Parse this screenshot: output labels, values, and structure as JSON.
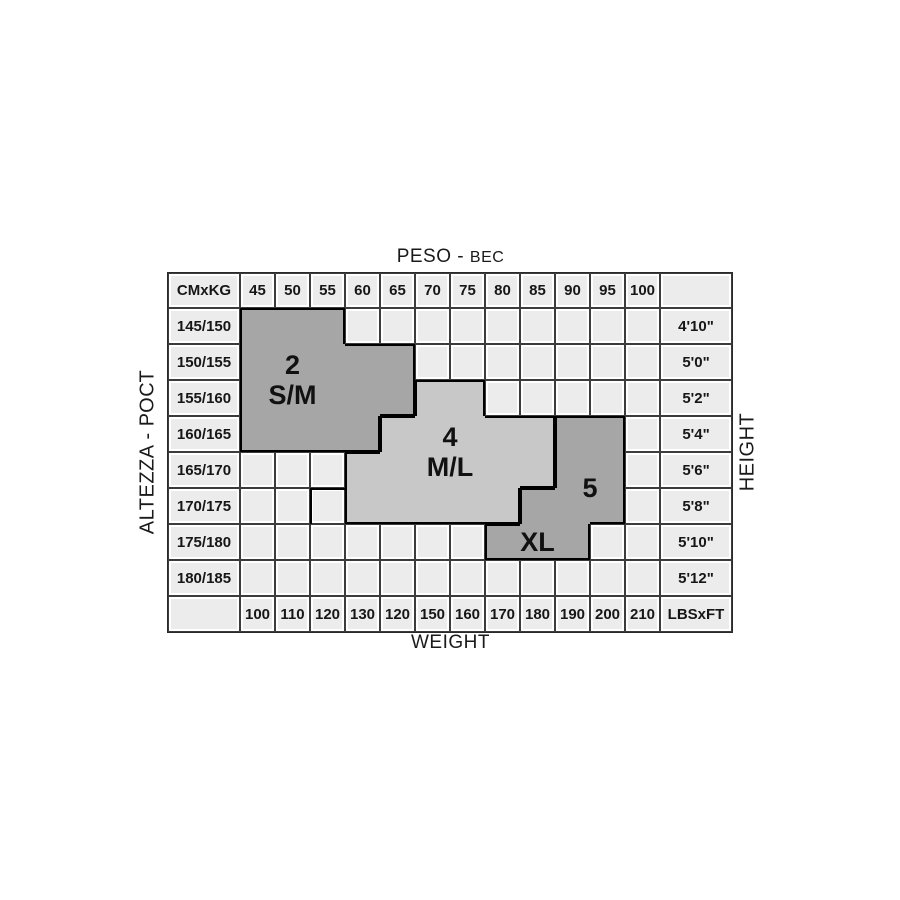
{
  "titles": {
    "top_main": "PESO - ",
    "top_cyr": "ВЕС",
    "bottom": "WEIGHT",
    "left": "ALTEZZA - РОСТ",
    "right": "HEIGHT"
  },
  "table": {
    "corner_label": "CMxKG",
    "unit_label": "LBSxFT",
    "kg_columns": [
      "45",
      "50",
      "55",
      "60",
      "65",
      "70",
      "75",
      "80",
      "85",
      "90",
      "95",
      "100"
    ],
    "rows": [
      {
        "cm": "145/150",
        "ft": "4'10\""
      },
      {
        "cm": "150/155",
        "ft": "5'0\""
      },
      {
        "cm": "155/160",
        "ft": "5'2\""
      },
      {
        "cm": "160/165",
        "ft": "5'4\""
      },
      {
        "cm": "165/170",
        "ft": "5'6\""
      },
      {
        "cm": "170/175",
        "ft": "5'8\""
      },
      {
        "cm": "175/180",
        "ft": "5'10\""
      },
      {
        "cm": "180/185",
        "ft": "5'12\""
      }
    ],
    "lbs_row": [
      "100",
      "110",
      "120",
      "130",
      "120",
      "150",
      "160",
      "170",
      "180",
      "190",
      "200",
      "210"
    ]
  },
  "regions": [
    {
      "id": "size-2-sm",
      "fill": "#a6a6a6",
      "cells": [
        [
          1,
          1
        ],
        [
          1,
          2
        ],
        [
          1,
          3
        ],
        [
          2,
          1
        ],
        [
          2,
          2
        ],
        [
          2,
          3
        ],
        [
          2,
          4
        ],
        [
          2,
          5
        ],
        [
          3,
          1
        ],
        [
          3,
          2
        ],
        [
          3,
          3
        ],
        [
          3,
          4
        ],
        [
          3,
          5
        ],
        [
          4,
          1
        ],
        [
          4,
          2
        ],
        [
          4,
          3
        ],
        [
          4,
          4
        ]
      ],
      "labels": [
        {
          "lines": [
            "2",
            "S/M"
          ],
          "col_start": 1,
          "col_end": 3,
          "row_start": 2,
          "row_end": 3
        }
      ]
    },
    {
      "id": "size-4-ml",
      "fill": "#c8c8c8",
      "cells": [
        [
          3,
          6
        ],
        [
          3,
          7
        ],
        [
          4,
          5
        ],
        [
          4,
          6
        ],
        [
          4,
          7
        ],
        [
          4,
          8
        ],
        [
          4,
          9
        ],
        [
          5,
          4
        ],
        [
          5,
          5
        ],
        [
          5,
          6
        ],
        [
          5,
          7
        ],
        [
          5,
          8
        ],
        [
          5,
          9
        ],
        [
          6,
          4
        ],
        [
          6,
          5
        ],
        [
          6,
          6
        ],
        [
          6,
          7
        ],
        [
          6,
          8
        ]
      ],
      "outline_only": [
        {
          "row": 6,
          "col": 3,
          "sides": [
            "top",
            "left"
          ]
        }
      ],
      "labels": [
        {
          "lines": [
            "4",
            "M/L"
          ],
          "col_start": 6,
          "col_end": 7,
          "row_start": 4,
          "row_end": 5
        }
      ]
    },
    {
      "id": "size-5-xl",
      "fill": "#a6a6a6",
      "cells": [
        [
          4,
          10
        ],
        [
          4,
          11
        ],
        [
          5,
          10
        ],
        [
          5,
          11
        ],
        [
          6,
          9
        ],
        [
          6,
          10
        ],
        [
          6,
          11
        ],
        [
          7,
          8
        ],
        [
          7,
          9
        ],
        [
          7,
          10
        ]
      ],
      "labels": [
        {
          "lines": [
            "5"
          ],
          "col_start": 10,
          "col_end": 11,
          "row_start": 5,
          "row_end": 6
        },
        {
          "lines": [
            "XL"
          ],
          "col_start": 8,
          "col_end": 10,
          "row_start": 7,
          "row_end": 7
        }
      ]
    }
  ],
  "colors": {
    "cell_bg": "#ececec",
    "grid_line": "#3c3c3c",
    "region_outline": "#000000",
    "dark_region": "#a6a6a6",
    "light_region": "#c8c8c8",
    "text": "#161616"
  },
  "chart_data": {
    "type": "heatmap",
    "title": "PESO - ВЕС / WEIGHT vs ALTEZZA - РОСТ / HEIGHT size chart",
    "x_kg": [
      45,
      50,
      55,
      60,
      65,
      70,
      75,
      80,
      85,
      90,
      95,
      100
    ],
    "x_lbs": [
      100,
      110,
      120,
      130,
      120,
      150,
      160,
      170,
      180,
      190,
      200,
      210
    ],
    "y_cm": [
      "145/150",
      "150/155",
      "155/160",
      "160/165",
      "165/170",
      "170/175",
      "175/180",
      "180/185"
    ],
    "y_ft": [
      "4'10\"",
      "5'0\"",
      "5'2\"",
      "5'4\"",
      "5'6\"",
      "5'8\"",
      "5'10\"",
      "5'12\""
    ],
    "sizes": [
      {
        "name": "2 S/M",
        "kg_range_by_height": {
          "145/150": [
            45,
            55
          ],
          "150/155": [
            45,
            65
          ],
          "155/160": [
            45,
            65
          ],
          "160/165": [
            45,
            60
          ]
        }
      },
      {
        "name": "4 M/L",
        "kg_range_by_height": {
          "155/160": [
            70,
            75
          ],
          "160/165": [
            65,
            85
          ],
          "165/170": [
            60,
            85
          ],
          "170/175": [
            60,
            80
          ]
        }
      },
      {
        "name": "5",
        "kg_range_by_height": {
          "160/165": [
            90,
            95
          ],
          "165/170": [
            90,
            95
          ],
          "170/175": [
            85,
            95
          ]
        }
      },
      {
        "name": "XL",
        "kg_range_by_height": {
          "175/180": [
            80,
            90
          ]
        }
      }
    ]
  }
}
